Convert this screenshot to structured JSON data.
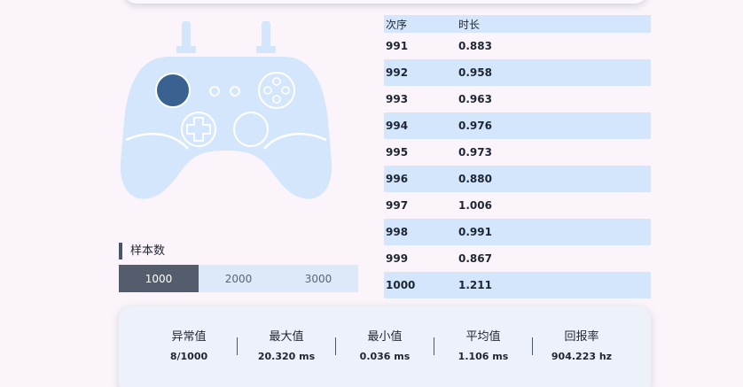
{
  "table": {
    "headers": [
      "次序",
      "时长"
    ],
    "rows": [
      {
        "index": "991",
        "duration": "0.883"
      },
      {
        "index": "992",
        "duration": "0.958"
      },
      {
        "index": "993",
        "duration": "0.963"
      },
      {
        "index": "994",
        "duration": "0.976"
      },
      {
        "index": "995",
        "duration": "0.973"
      },
      {
        "index": "996",
        "duration": "0.880"
      },
      {
        "index": "997",
        "duration": "1.006"
      },
      {
        "index": "998",
        "duration": "0.991"
      },
      {
        "index": "999",
        "duration": "0.867"
      },
      {
        "index": "1000",
        "duration": "1.211"
      }
    ]
  },
  "samples": {
    "label": "样本数",
    "options": [
      "1000",
      "2000",
      "3000"
    ],
    "selected": "1000"
  },
  "stats": [
    {
      "label": "异常值",
      "value": "8/1000"
    },
    {
      "label": "最大值",
      "value": "20.320 ms"
    },
    {
      "label": "最小值",
      "value": "0.036 ms"
    },
    {
      "label": "平均值",
      "value": "1.106 ms"
    },
    {
      "label": "回报率",
      "value": "904.223 hz"
    }
  ],
  "colors": {
    "controller_body": "#d4e6fb",
    "active_stick": "#3a6291",
    "outline": "#ffffff",
    "accent_dark": "#545d6b"
  }
}
